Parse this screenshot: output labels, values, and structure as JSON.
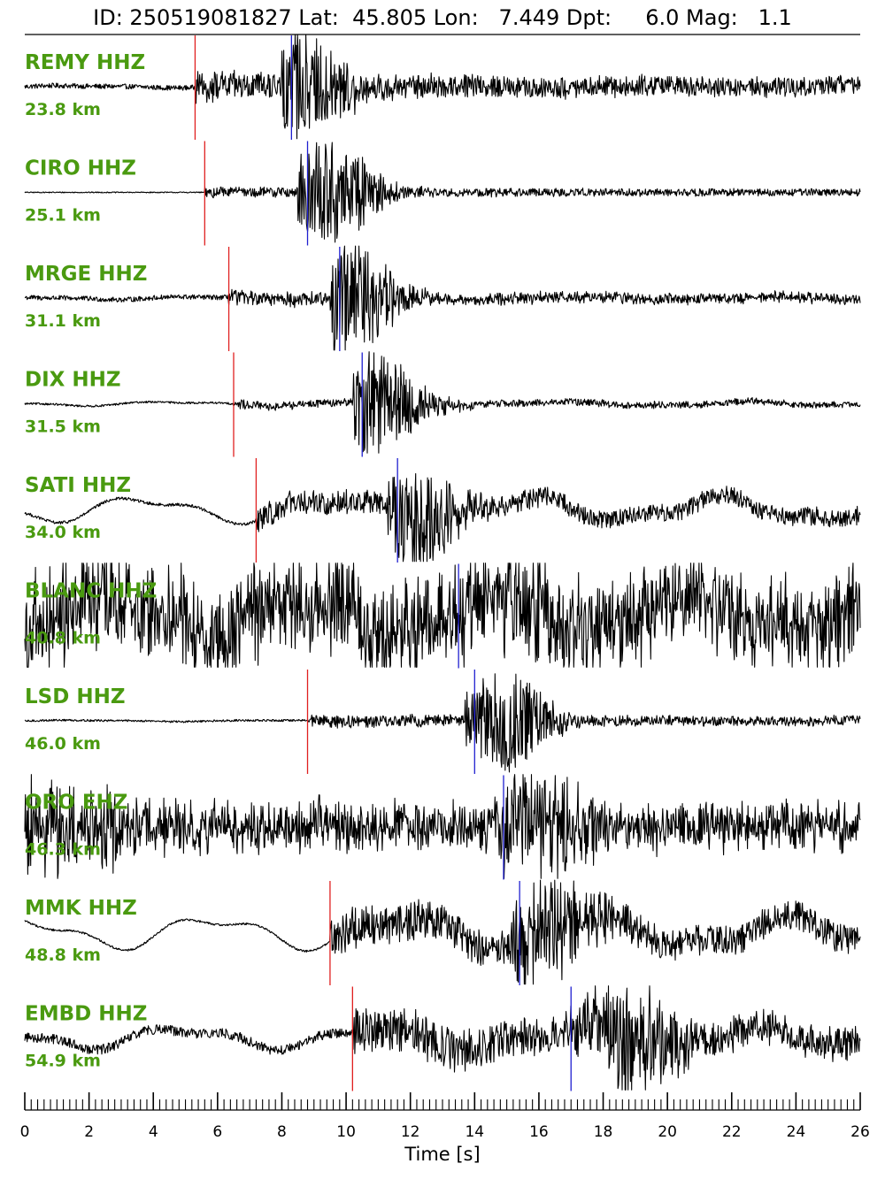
{
  "title": "ID: 250519081827 Lat:  45.805 Lon:   7.449 Dpt:     6.0 Mag:   1.1",
  "chart_data": {
    "type": "line",
    "title": "ID: 250519081827 Lat:  45.805 Lon:   7.449 Dpt:     6.0 Mag:   1.1",
    "event": {
      "id": "250519081827",
      "lat": 45.805,
      "lon": 7.449,
      "depth": 6.0,
      "magnitude": 1.1
    },
    "xlabel": "Time [s]",
    "xlim": [
      0,
      26
    ],
    "x_ticks": [
      0,
      2,
      4,
      6,
      8,
      10,
      12,
      14,
      16,
      18,
      20,
      22,
      24,
      26
    ],
    "x_minor_step": 0.2,
    "colors": {
      "label": "#4a9a10",
      "p_pick": "#e02020",
      "s_pick": "#2020d0",
      "trace": "#000000"
    },
    "stations": [
      {
        "name": "REMY HHZ",
        "distance": "23.8 km",
        "p": 5.3,
        "s": 8.3,
        "pre_noise": 0.025,
        "noise": 0.13,
        "peak": 0.95,
        "peak_t": 8.5,
        "lowfreq": 0.03,
        "burst": 0.0
      },
      {
        "name": "CIRO HHZ",
        "distance": "25.1 km",
        "p": 5.6,
        "s": 8.8,
        "pre_noise": 0.005,
        "noise": 0.05,
        "peak": 0.95,
        "peak_t": 9.5,
        "lowfreq": 0.0,
        "burst": 0.0
      },
      {
        "name": "MRGE HHZ",
        "distance": "31.1 km",
        "p": 6.35,
        "s": 9.8,
        "pre_noise": 0.025,
        "noise": 0.06,
        "peak": 1.0,
        "peak_t": 10.1,
        "lowfreq": 0.04,
        "burst": 0.0
      },
      {
        "name": "DIX HHZ",
        "distance": "31.5 km",
        "p": 6.5,
        "s": 10.5,
        "pre_noise": 0.01,
        "noise": 0.04,
        "peak": 0.95,
        "peak_t": 10.9,
        "lowfreq": 0.06,
        "burst": 0.0
      },
      {
        "name": "SATI HHZ",
        "distance": "34.0 km",
        "p": 7.2,
        "s": 11.6,
        "pre_noise": 0.015,
        "noise": 0.12,
        "peak": 0.85,
        "peak_t": 12.2,
        "lowfreq": 0.35,
        "burst": 0.0
      },
      {
        "name": "BLANC HHZ",
        "distance": "40.8 km",
        "p": null,
        "s": 13.5,
        "pre_noise": 0.35,
        "noise": 0.3,
        "peak": 0.6,
        "peak_t": 15.5,
        "lowfreq": 0.5,
        "burst": 0.0
      },
      {
        "name": "LSD HHZ",
        "distance": "46.0 km",
        "p": 8.8,
        "s": 14.0,
        "pre_noise": 0.01,
        "noise": 0.06,
        "peak": 0.9,
        "peak_t": 14.9,
        "lowfreq": 0.02,
        "burst": 0.0
      },
      {
        "name": "ORO EHZ",
        "distance": "46.3 km",
        "p": null,
        "s": 14.9,
        "pre_noise": 0.18,
        "noise": 0.18,
        "peak": 0.9,
        "peak_t": 15.8,
        "lowfreq": 0.0,
        "burst": 0.25
      },
      {
        "name": "MMK HHZ",
        "distance": "48.8 km",
        "p": 9.5,
        "s": 15.4,
        "pre_noise": 0.01,
        "noise": 0.2,
        "peak": 0.9,
        "peak_t": 16.2,
        "lowfreq": 0.45,
        "burst": 0.0
      },
      {
        "name": "EMBD HHZ",
        "distance": "54.9 km",
        "p": 10.2,
        "s": 17.0,
        "pre_noise": 0.05,
        "noise": 0.2,
        "peak": 1.0,
        "peak_t": 18.9,
        "lowfreq": 0.3,
        "burst": 0.0
      }
    ]
  }
}
